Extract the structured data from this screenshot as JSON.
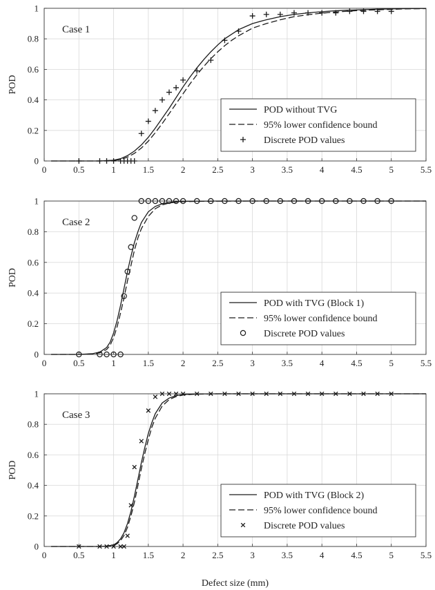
{
  "figure": {
    "xlabel": "Defect size (mm)"
  },
  "chart_data": [
    {
      "type": "line",
      "annotation": "Case 1",
      "xlabel": "",
      "ylabel": "POD",
      "xlim": [
        0,
        5.5
      ],
      "ylim": [
        0,
        1
      ],
      "xticks": [
        "0",
        "0.5",
        "1",
        "1.5",
        "2",
        "2.5",
        "3",
        "3.5",
        "4",
        "4.5",
        "5",
        "5.5"
      ],
      "yticks": [
        "0",
        "0.2",
        "0.4",
        "0.6",
        "0.8",
        "1"
      ],
      "grid": true,
      "legend_position": "bottom-right",
      "series": [
        {
          "name": "POD without TVG",
          "style": "solid",
          "x": [
            0.1,
            0.5,
            0.8,
            1.0,
            1.1,
            1.2,
            1.3,
            1.4,
            1.5,
            1.6,
            1.7,
            1.8,
            1.9,
            2.0,
            2.1,
            2.2,
            2.3,
            2.4,
            2.5,
            2.6,
            2.7,
            2.8,
            2.9,
            3.0,
            3.2,
            3.4,
            3.6,
            3.8,
            4.0,
            4.2,
            4.4,
            4.6,
            4.8,
            5.0,
            5.2,
            5.5
          ],
          "y": [
            0,
            0,
            0,
            0.005,
            0.015,
            0.035,
            0.065,
            0.105,
            0.155,
            0.215,
            0.28,
            0.345,
            0.415,
            0.485,
            0.55,
            0.61,
            0.665,
            0.715,
            0.76,
            0.8,
            0.83,
            0.86,
            0.88,
            0.9,
            0.925,
            0.945,
            0.96,
            0.97,
            0.978,
            0.984,
            0.988,
            0.991,
            0.994,
            0.996,
            0.998,
            0.999
          ]
        },
        {
          "name": "95% lower confidence bound",
          "style": "dashed",
          "x": [
            0.1,
            0.5,
            0.8,
            1.0,
            1.1,
            1.2,
            1.3,
            1.4,
            1.5,
            1.6,
            1.7,
            1.8,
            1.9,
            2.0,
            2.1,
            2.2,
            2.3,
            2.4,
            2.5,
            2.6,
            2.7,
            2.8,
            2.9,
            3.0,
            3.2,
            3.4,
            3.6,
            3.8,
            4.0,
            4.2,
            4.4,
            4.6,
            4.8,
            5.0,
            5.2,
            5.5
          ],
          "y": [
            0,
            0,
            0,
            0.003,
            0.01,
            0.025,
            0.05,
            0.085,
            0.13,
            0.185,
            0.245,
            0.31,
            0.375,
            0.44,
            0.505,
            0.565,
            0.62,
            0.67,
            0.715,
            0.755,
            0.79,
            0.82,
            0.845,
            0.87,
            0.9,
            0.925,
            0.945,
            0.958,
            0.968,
            0.976,
            0.982,
            0.987,
            0.99,
            0.993,
            0.996,
            0.998
          ]
        },
        {
          "name": "Discrete POD values",
          "style": "marker",
          "marker": "plus",
          "x": [
            0.5,
            0.8,
            0.9,
            1.0,
            1.1,
            1.15,
            1.2,
            1.25,
            1.3,
            1.4,
            1.5,
            1.6,
            1.7,
            1.8,
            1.9,
            2.0,
            2.2,
            2.4,
            2.6,
            2.8,
            3.0,
            3.2,
            3.4,
            3.6,
            3.8,
            4.0,
            4.2,
            4.4,
            4.6,
            4.8,
            5.0
          ],
          "y": [
            0,
            0,
            0,
            0,
            0,
            0,
            0,
            0,
            0,
            0.18,
            0.26,
            0.33,
            0.4,
            0.45,
            0.48,
            0.53,
            0.59,
            0.66,
            0.79,
            0.85,
            0.95,
            0.96,
            0.96,
            0.97,
            0.97,
            0.97,
            0.97,
            0.98,
            0.98,
            0.98,
            0.98
          ]
        }
      ]
    },
    {
      "type": "line",
      "annotation": "Case 2",
      "xlabel": "",
      "ylabel": "POD",
      "xlim": [
        0,
        5.5
      ],
      "ylim": [
        0,
        1
      ],
      "xticks": [
        "0",
        "0.5",
        "1",
        "1.5",
        "2",
        "2.5",
        "3",
        "3.5",
        "4",
        "4.5",
        "5",
        "5.5"
      ],
      "yticks": [
        "0",
        "0.2",
        "0.4",
        "0.6",
        "0.8",
        "1"
      ],
      "grid": true,
      "legend_position": "bottom-right",
      "series": [
        {
          "name": "POD with TVG (Block 1)",
          "style": "solid",
          "x": [
            0.1,
            0.5,
            0.7,
            0.8,
            0.9,
            0.95,
            1.0,
            1.05,
            1.1,
            1.15,
            1.2,
            1.25,
            1.3,
            1.35,
            1.4,
            1.5,
            1.6,
            1.7,
            1.8,
            1.9,
            2.0,
            2.2,
            2.5,
            3.0,
            4.0,
            5.0,
            5.5
          ],
          "y": [
            0,
            0,
            0.005,
            0.015,
            0.045,
            0.08,
            0.14,
            0.22,
            0.32,
            0.43,
            0.54,
            0.64,
            0.73,
            0.8,
            0.86,
            0.93,
            0.965,
            0.982,
            0.991,
            0.996,
            0.998,
            0.999,
            1,
            1,
            1,
            1,
            1
          ]
        },
        {
          "name": "95% lower confidence bound",
          "style": "dashed",
          "x": [
            0.1,
            0.5,
            0.7,
            0.8,
            0.9,
            0.95,
            1.0,
            1.05,
            1.1,
            1.15,
            1.2,
            1.25,
            1.3,
            1.35,
            1.4,
            1.5,
            1.6,
            1.7,
            1.8,
            1.9,
            2.0,
            2.2,
            2.5,
            3.0,
            4.0,
            5.0,
            5.5
          ],
          "y": [
            0,
            0,
            0.003,
            0.01,
            0.032,
            0.06,
            0.11,
            0.18,
            0.27,
            0.37,
            0.48,
            0.58,
            0.68,
            0.76,
            0.82,
            0.9,
            0.95,
            0.975,
            0.987,
            0.993,
            0.996,
            0.998,
            0.999,
            1,
            1,
            1,
            1
          ]
        },
        {
          "name": "Discrete POD values",
          "style": "marker",
          "marker": "circle",
          "x": [
            0.5,
            0.8,
            0.9,
            1.0,
            1.1,
            1.15,
            1.2,
            1.25,
            1.3,
            1.4,
            1.5,
            1.6,
            1.7,
            1.8,
            1.9,
            2.0,
            2.2,
            2.4,
            2.6,
            2.8,
            3.0,
            3.2,
            3.4,
            3.6,
            3.8,
            4.0,
            4.2,
            4.4,
            4.6,
            4.8,
            5.0
          ],
          "y": [
            0,
            0,
            0,
            0,
            0,
            0.38,
            0.54,
            0.7,
            0.89,
            1,
            1,
            1,
            1,
            1,
            1,
            1,
            1,
            1,
            1,
            1,
            1,
            1,
            1,
            1,
            1,
            1,
            1,
            1,
            1,
            1,
            1
          ]
        }
      ]
    },
    {
      "type": "line",
      "annotation": "Case 3",
      "xlabel": "Defect size (mm)",
      "ylabel": "POD",
      "xlim": [
        0,
        5.5
      ],
      "ylim": [
        0,
        1
      ],
      "xticks": [
        "0",
        "0.5",
        "1",
        "1.5",
        "2",
        "2.5",
        "3",
        "3.5",
        "4",
        "4.5",
        "5",
        "5.5"
      ],
      "yticks": [
        "0",
        "0.2",
        "0.4",
        "0.6",
        "0.8",
        "1"
      ],
      "grid": true,
      "legend_position": "bottom-right",
      "series": [
        {
          "name": "POD with TVG (Block 2)",
          "style": "solid",
          "x": [
            0.1,
            0.5,
            0.8,
            0.9,
            1.0,
            1.05,
            1.1,
            1.15,
            1.2,
            1.25,
            1.3,
            1.35,
            1.4,
            1.45,
            1.5,
            1.55,
            1.6,
            1.7,
            1.8,
            1.9,
            2.0,
            2.2,
            2.5,
            3.0,
            4.0,
            5.0,
            5.5
          ],
          "y": [
            0,
            0,
            0,
            0.003,
            0.01,
            0.025,
            0.05,
            0.09,
            0.15,
            0.23,
            0.33,
            0.44,
            0.55,
            0.65,
            0.74,
            0.81,
            0.87,
            0.94,
            0.972,
            0.988,
            0.995,
            0.999,
            1,
            1,
            1,
            1,
            1
          ]
        },
        {
          "name": "95% lower confidence bound",
          "style": "dashed",
          "x": [
            0.1,
            0.5,
            0.8,
            0.9,
            1.0,
            1.05,
            1.1,
            1.15,
            1.2,
            1.25,
            1.3,
            1.35,
            1.4,
            1.45,
            1.5,
            1.55,
            1.6,
            1.7,
            1.8,
            1.9,
            2.0,
            2.2,
            2.5,
            3.0,
            4.0,
            5.0,
            5.5
          ],
          "y": [
            0,
            0,
            0,
            0.002,
            0.007,
            0.018,
            0.038,
            0.072,
            0.125,
            0.2,
            0.29,
            0.4,
            0.51,
            0.61,
            0.7,
            0.78,
            0.84,
            0.92,
            0.962,
            0.982,
            0.992,
            0.998,
            1,
            1,
            1,
            1,
            1
          ]
        },
        {
          "name": "Discrete POD values",
          "style": "marker",
          "marker": "cross",
          "x": [
            0.5,
            0.8,
            0.9,
            1.0,
            1.1,
            1.15,
            1.2,
            1.25,
            1.3,
            1.4,
            1.5,
            1.6,
            1.7,
            1.8,
            1.9,
            2.0,
            2.2,
            2.4,
            2.6,
            2.8,
            3.0,
            3.2,
            3.4,
            3.6,
            3.8,
            4.0,
            4.2,
            4.4,
            4.6,
            4.8,
            5.0
          ],
          "y": [
            0,
            0,
            0,
            0,
            0,
            0,
            0.07,
            0.27,
            0.52,
            0.69,
            0.89,
            0.98,
            1,
            1,
            1,
            1,
            1,
            1,
            1,
            1,
            1,
            1,
            1,
            1,
            1,
            1,
            1,
            1,
            1,
            1,
            1
          ]
        }
      ]
    }
  ]
}
